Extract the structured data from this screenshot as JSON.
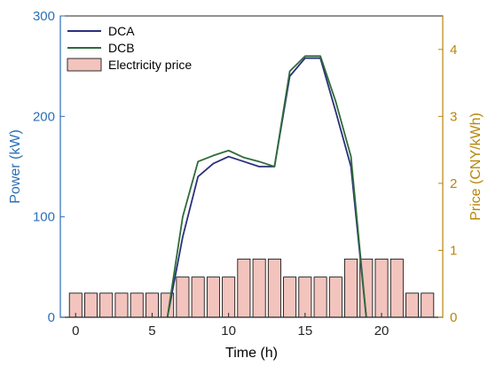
{
  "colors": {
    "left_axis": "#2c6fb7",
    "right_axis": "#b8860b",
    "bar_fill": "#f2c4bd",
    "bar_edge": "#000000",
    "series": [
      "#2b2f7a",
      "#2f6b3a"
    ]
  },
  "chart_data": {
    "type": "bar+line",
    "xlabel": "Time (h)",
    "ylabel_left": "Power (kW)",
    "ylabel_right": "Price (CNY/kWh)",
    "xlim": [
      -1,
      24
    ],
    "ylim_left": [
      0,
      300
    ],
    "ylim_right": [
      0,
      4.5
    ],
    "xticks": [
      0,
      5,
      10,
      15,
      20
    ],
    "yticks_left": [
      0,
      100,
      200,
      300
    ],
    "yticks_right": [
      0,
      1,
      2,
      3,
      4
    ],
    "legend_position": "top-left",
    "bars": {
      "name": "Electricity price",
      "x": [
        0,
        1,
        2,
        3,
        4,
        5,
        6,
        7,
        8,
        9,
        10,
        11,
        12,
        13,
        14,
        15,
        16,
        17,
        18,
        19,
        20,
        21,
        22,
        23
      ],
      "values": [
        0.36,
        0.36,
        0.36,
        0.36,
        0.36,
        0.36,
        0.36,
        0.6,
        0.6,
        0.6,
        0.6,
        0.87,
        0.87,
        0.87,
        0.6,
        0.6,
        0.6,
        0.6,
        0.87,
        0.87,
        0.87,
        0.87,
        0.36,
        0.36
      ]
    },
    "series": [
      {
        "name": "DCA",
        "x": [
          6,
          7,
          8,
          9,
          10,
          11,
          12,
          13,
          14,
          15,
          16,
          17,
          18,
          19
        ],
        "values": [
          0,
          80,
          140,
          153,
          160,
          155,
          150,
          150,
          240,
          258,
          258,
          205,
          150,
          0
        ]
      },
      {
        "name": "DCB",
        "x": [
          6,
          7,
          8,
          9,
          10,
          11,
          12,
          13,
          14,
          15,
          16,
          17,
          18,
          19
        ],
        "values": [
          0,
          100,
          155,
          161,
          166,
          159,
          155,
          150,
          245,
          260,
          260,
          215,
          160,
          0
        ]
      }
    ]
  }
}
